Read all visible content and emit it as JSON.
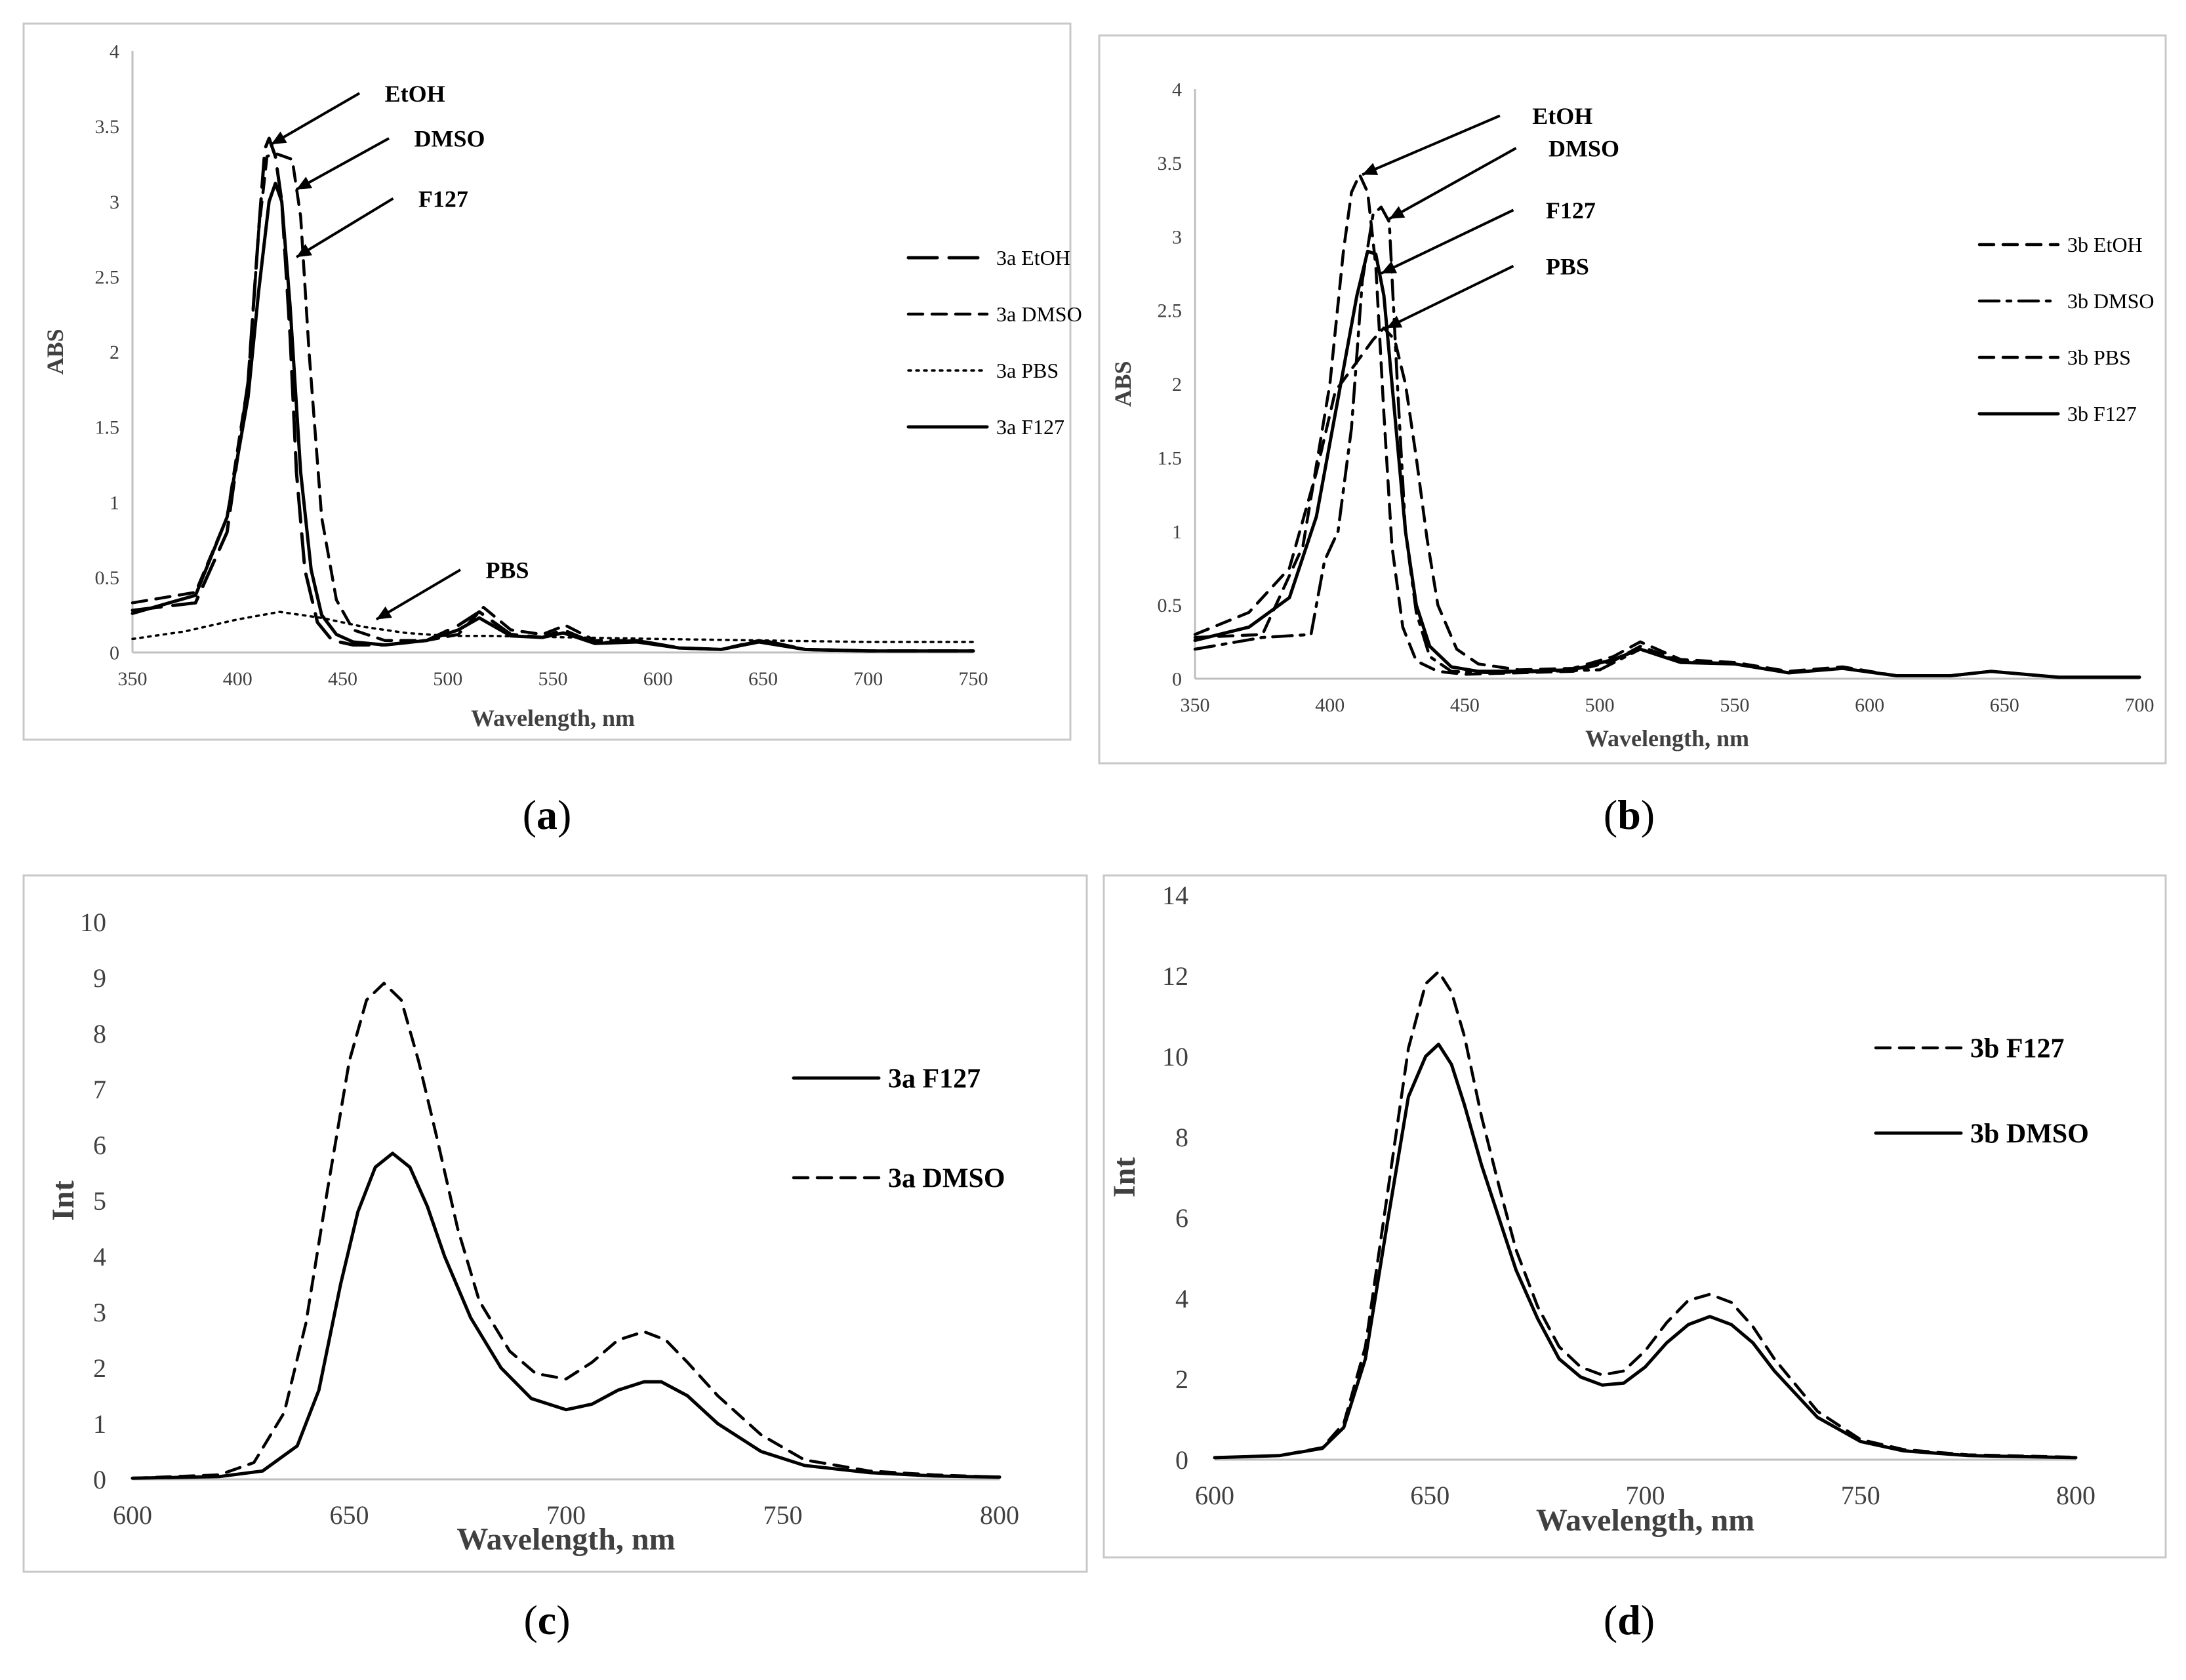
{
  "chart_data": [
    {
      "id": "a",
      "caption_letter": "a",
      "type": "line",
      "xlabel": "Wavelength, nm",
      "ylabel": "ABS",
      "xlim": [
        350,
        750
      ],
      "ylim": [
        0,
        4
      ],
      "xticks": [
        350,
        400,
        450,
        500,
        550,
        600,
        650,
        700,
        750
      ],
      "yticks": [
        0,
        0.5,
        1,
        1.5,
        2,
        2.5,
        3,
        3.5,
        4
      ],
      "ytick_labels": [
        "0",
        "0.5",
        "1",
        "1.5",
        "2",
        "2.5",
        "3",
        "3.5",
        "4"
      ],
      "legend_position": "right",
      "series": [
        {
          "name": "3a EtOH",
          "style": "longdash",
          "x": [
            350,
            380,
            395,
            405,
            410,
            413,
            415,
            418,
            421,
            425,
            428,
            432,
            438,
            445,
            455,
            470,
            490,
            505,
            515,
            530,
            545,
            555,
            570,
            590,
            610,
            630,
            650,
            670,
            700,
            750
          ],
          "y": [
            0.28,
            0.33,
            0.8,
            1.8,
            2.8,
            3.35,
            3.42,
            3.3,
            3.0,
            2.1,
            1.2,
            0.55,
            0.2,
            0.08,
            0.05,
            0.05,
            0.08,
            0.18,
            0.27,
            0.12,
            0.1,
            0.15,
            0.06,
            0.08,
            0.03,
            0.02,
            0.08,
            0.02,
            0.01,
            0.01
          ]
        },
        {
          "name": "3a DMSO",
          "style": "dash",
          "x": [
            350,
            380,
            395,
            405,
            410,
            414,
            418,
            422,
            426,
            430,
            434,
            440,
            447,
            455,
            470,
            490,
            505,
            517,
            530,
            545,
            556,
            570,
            590,
            610,
            630,
            648,
            670,
            700,
            750
          ],
          "y": [
            0.33,
            0.4,
            0.9,
            1.8,
            2.8,
            3.3,
            3.32,
            3.3,
            3.28,
            2.9,
            2.0,
            0.9,
            0.35,
            0.15,
            0.08,
            0.08,
            0.12,
            0.3,
            0.15,
            0.12,
            0.18,
            0.08,
            0.08,
            0.03,
            0.02,
            0.08,
            0.02,
            0.01,
            0.01
          ]
        },
        {
          "name": "3a PBS",
          "style": "dot",
          "x": [
            350,
            375,
            400,
            420,
            440,
            460,
            480,
            500,
            520,
            560,
            600,
            650,
            700,
            750
          ],
          "y": [
            0.09,
            0.14,
            0.22,
            0.27,
            0.23,
            0.17,
            0.13,
            0.11,
            0.11,
            0.1,
            0.09,
            0.08,
            0.07,
            0.07
          ]
        },
        {
          "name": "3a F127",
          "style": "solid",
          "x": [
            350,
            380,
            395,
            405,
            410,
            415,
            418,
            421,
            425,
            430,
            435,
            440,
            447,
            455,
            470,
            490,
            505,
            515,
            530,
            545,
            555,
            570,
            590,
            610,
            630,
            648,
            670,
            700,
            750
          ],
          "y": [
            0.26,
            0.38,
            0.9,
            1.7,
            2.4,
            3.0,
            3.12,
            3.0,
            2.3,
            1.2,
            0.55,
            0.25,
            0.12,
            0.07,
            0.05,
            0.08,
            0.15,
            0.23,
            0.11,
            0.1,
            0.13,
            0.06,
            0.07,
            0.03,
            0.02,
            0.07,
            0.02,
            0.01,
            0.01
          ]
        }
      ],
      "annotations": [
        {
          "text": "EtOH",
          "x": 470,
          "y": 3.72,
          "arrow_from": [
            458,
            3.72
          ],
          "arrow_to": [
            416,
            3.38
          ]
        },
        {
          "text": "DMSO",
          "x": 484,
          "y": 3.42,
          "arrow_from": [
            472,
            3.42
          ],
          "arrow_to": [
            428,
            3.08
          ]
        },
        {
          "text": "F127",
          "x": 486,
          "y": 3.02,
          "arrow_from": [
            474,
            3.02
          ],
          "arrow_to": [
            428,
            2.63
          ]
        },
        {
          "text": "PBS",
          "x": 518,
          "y": 0.55,
          "arrow_from": [
            506,
            0.55
          ],
          "arrow_to": [
            466,
            0.22
          ]
        }
      ]
    },
    {
      "id": "b",
      "caption_letter": "b",
      "type": "line",
      "xlabel": "Wavelength, nm",
      "ylabel": "ABS",
      "xlim": [
        350,
        700
      ],
      "ylim": [
        0,
        4
      ],
      "xticks": [
        350,
        400,
        450,
        500,
        550,
        600,
        650,
        700
      ],
      "yticks": [
        0,
        0.5,
        1,
        1.5,
        2,
        2.5,
        3,
        3.5,
        4
      ],
      "ytick_labels": [
        "0",
        "0.5",
        "1",
        "1.5",
        "2",
        "2.5",
        "3",
        "3.5",
        "4"
      ],
      "legend_position": "right",
      "series": [
        {
          "name": "3b EtOH",
          "style": "dash",
          "x": [
            350,
            375,
            390,
            400,
            405,
            408,
            411,
            414,
            417,
            420,
            423,
            427,
            432,
            440,
            450,
            470,
            490,
            505,
            515,
            530,
            550,
            570,
            590,
            610,
            630,
            645,
            670,
            700
          ],
          "y": [
            0.28,
            0.3,
            0.9,
            2.0,
            2.9,
            3.3,
            3.42,
            3.3,
            2.8,
            1.8,
            0.9,
            0.35,
            0.12,
            0.05,
            0.03,
            0.04,
            0.05,
            0.12,
            0.22,
            0.12,
            0.1,
            0.04,
            0.07,
            0.02,
            0.02,
            0.05,
            0.01,
            0.01
          ]
        },
        {
          "name": "3b DMSO",
          "style": "dashdot",
          "x": [
            350,
            375,
            393,
            398,
            403,
            408,
            412,
            416,
            419,
            422,
            425,
            428,
            432,
            437,
            445,
            460,
            480,
            500,
            515,
            530,
            550,
            570,
            590,
            610,
            630,
            645,
            670,
            700
          ],
          "y": [
            0.2,
            0.28,
            0.3,
            0.8,
            1.0,
            1.7,
            2.7,
            3.15,
            3.2,
            3.1,
            2.0,
            1.0,
            0.45,
            0.15,
            0.05,
            0.04,
            0.05,
            0.06,
            0.2,
            0.12,
            0.1,
            0.04,
            0.07,
            0.02,
            0.02,
            0.05,
            0.01,
            0.01
          ]
        },
        {
          "name": "3b PBS",
          "style": "dash",
          "x": [
            350,
            370,
            385,
            395,
            402,
            410,
            416,
            420,
            424,
            428,
            432,
            436,
            440,
            447,
            455,
            470,
            490,
            505,
            515,
            530,
            550,
            570,
            590,
            610,
            630,
            645,
            670,
            700
          ],
          "y": [
            0.3,
            0.45,
            0.75,
            1.4,
            1.95,
            2.15,
            2.3,
            2.38,
            2.3,
            2.0,
            1.5,
            0.95,
            0.5,
            0.2,
            0.1,
            0.06,
            0.07,
            0.15,
            0.25,
            0.13,
            0.11,
            0.05,
            0.08,
            0.02,
            0.02,
            0.05,
            0.01,
            0.01
          ]
        },
        {
          "name": "3b F127",
          "style": "solid",
          "x": [
            350,
            370,
            385,
            395,
            403,
            410,
            414,
            417,
            420,
            424,
            428,
            432,
            437,
            445,
            455,
            470,
            490,
            505,
            515,
            530,
            550,
            570,
            590,
            610,
            630,
            645,
            670,
            700
          ],
          "y": [
            0.26,
            0.35,
            0.55,
            1.1,
            1.9,
            2.6,
            2.9,
            2.88,
            2.6,
            1.8,
            1.0,
            0.5,
            0.22,
            0.08,
            0.05,
            0.05,
            0.06,
            0.13,
            0.2,
            0.11,
            0.1,
            0.04,
            0.07,
            0.02,
            0.02,
            0.05,
            0.01,
            0.01
          ]
        }
      ],
      "annotations": [
        {
          "text": "EtOH",
          "x": 475,
          "y": 3.82,
          "arrow_from": [
            463,
            3.82
          ],
          "arrow_to": [
            412,
            3.42
          ]
        },
        {
          "text": "DMSO",
          "x": 481,
          "y": 3.6,
          "arrow_from": [
            469,
            3.6
          ],
          "arrow_to": [
            422,
            3.12
          ]
        },
        {
          "text": "F127",
          "x": 480,
          "y": 3.18,
          "arrow_from": [
            468,
            3.18
          ],
          "arrow_to": [
            419,
            2.75
          ]
        },
        {
          "text": "PBS",
          "x": 480,
          "y": 2.8,
          "arrow_from": [
            468,
            2.8
          ],
          "arrow_to": [
            421,
            2.38
          ]
        }
      ]
    },
    {
      "id": "c",
      "caption_letter": "c",
      "type": "line",
      "xlabel": "Wavelength, nm",
      "ylabel": "Int",
      "xlim": [
        600,
        800
      ],
      "ylim": [
        0,
        10
      ],
      "xticks": [
        600,
        650,
        700,
        750,
        800
      ],
      "yticks": [
        0,
        1,
        2,
        3,
        4,
        5,
        6,
        7,
        8,
        9,
        10
      ],
      "ytick_labels": [
        "0",
        "1",
        "2",
        "3",
        "4",
        "5",
        "6",
        "7",
        "8",
        "9",
        "10"
      ],
      "legend_position": "right",
      "series": [
        {
          "name": "3a F127",
          "style": "solid",
          "x": [
            600,
            620,
            630,
            638,
            643,
            648,
            652,
            656,
            660,
            664,
            668,
            672,
            678,
            685,
            692,
            700,
            706,
            712,
            718,
            722,
            728,
            735,
            745,
            755,
            770,
            785,
            800
          ],
          "y": [
            0.02,
            0.05,
            0.15,
            0.6,
            1.6,
            3.5,
            4.8,
            5.6,
            5.85,
            5.6,
            4.9,
            4.0,
            2.9,
            2.0,
            1.45,
            1.25,
            1.35,
            1.6,
            1.75,
            1.75,
            1.5,
            1.0,
            0.5,
            0.25,
            0.12,
            0.06,
            0.04
          ]
        },
        {
          "name": "3a DMSO",
          "style": "dash",
          "x": [
            600,
            620,
            628,
            635,
            640,
            645,
            650,
            654,
            658,
            662,
            666,
            670,
            675,
            680,
            687,
            693,
            700,
            706,
            712,
            718,
            723,
            728,
            735,
            745,
            755,
            770,
            785,
            800
          ],
          "y": [
            0.02,
            0.08,
            0.3,
            1.2,
            2.8,
            5.2,
            7.5,
            8.6,
            8.9,
            8.6,
            7.5,
            6.2,
            4.5,
            3.2,
            2.3,
            1.9,
            1.8,
            2.1,
            2.5,
            2.65,
            2.5,
            2.1,
            1.5,
            0.8,
            0.35,
            0.15,
            0.08,
            0.04
          ]
        }
      ]
    },
    {
      "id": "d",
      "caption_letter": "d",
      "type": "line",
      "xlabel": "Wavelength, nm",
      "ylabel": "Int",
      "xlim": [
        600,
        800
      ],
      "ylim": [
        0,
        14
      ],
      "xticks": [
        600,
        650,
        700,
        750,
        800
      ],
      "yticks": [
        0,
        2,
        4,
        6,
        8,
        10,
        12,
        14
      ],
      "ytick_labels": [
        "0",
        "2",
        "4",
        "6",
        "8",
        "10",
        "12",
        "14"
      ],
      "legend_position": "right",
      "series": [
        {
          "name": "3b F127",
          "style": "dash",
          "x": [
            600,
            615,
            625,
            630,
            635,
            640,
            645,
            649,
            652,
            655,
            658,
            662,
            666,
            670,
            675,
            680,
            685,
            690,
            695,
            700,
            705,
            710,
            715,
            720,
            725,
            730,
            740,
            750,
            760,
            775,
            800
          ],
          "y": [
            0.05,
            0.1,
            0.3,
            0.9,
            2.8,
            6.5,
            10.2,
            11.8,
            12.1,
            11.6,
            10.5,
            8.5,
            6.8,
            5.2,
            3.8,
            2.8,
            2.3,
            2.1,
            2.2,
            2.7,
            3.4,
            3.95,
            4.1,
            3.9,
            3.3,
            2.5,
            1.2,
            0.5,
            0.25,
            0.12,
            0.06
          ]
        },
        {
          "name": "3b DMSO",
          "style": "solid",
          "x": [
            600,
            615,
            625,
            630,
            635,
            640,
            645,
            649,
            652,
            655,
            658,
            662,
            666,
            670,
            675,
            680,
            685,
            690,
            695,
            700,
            705,
            710,
            715,
            720,
            725,
            730,
            740,
            750,
            760,
            775,
            800
          ],
          "y": [
            0.05,
            0.1,
            0.28,
            0.8,
            2.5,
            5.8,
            9.0,
            10.0,
            10.3,
            9.8,
            8.8,
            7.3,
            6.0,
            4.7,
            3.5,
            2.5,
            2.05,
            1.85,
            1.9,
            2.3,
            2.9,
            3.35,
            3.55,
            3.35,
            2.9,
            2.2,
            1.05,
            0.45,
            0.22,
            0.1,
            0.05
          ]
        }
      ]
    }
  ]
}
